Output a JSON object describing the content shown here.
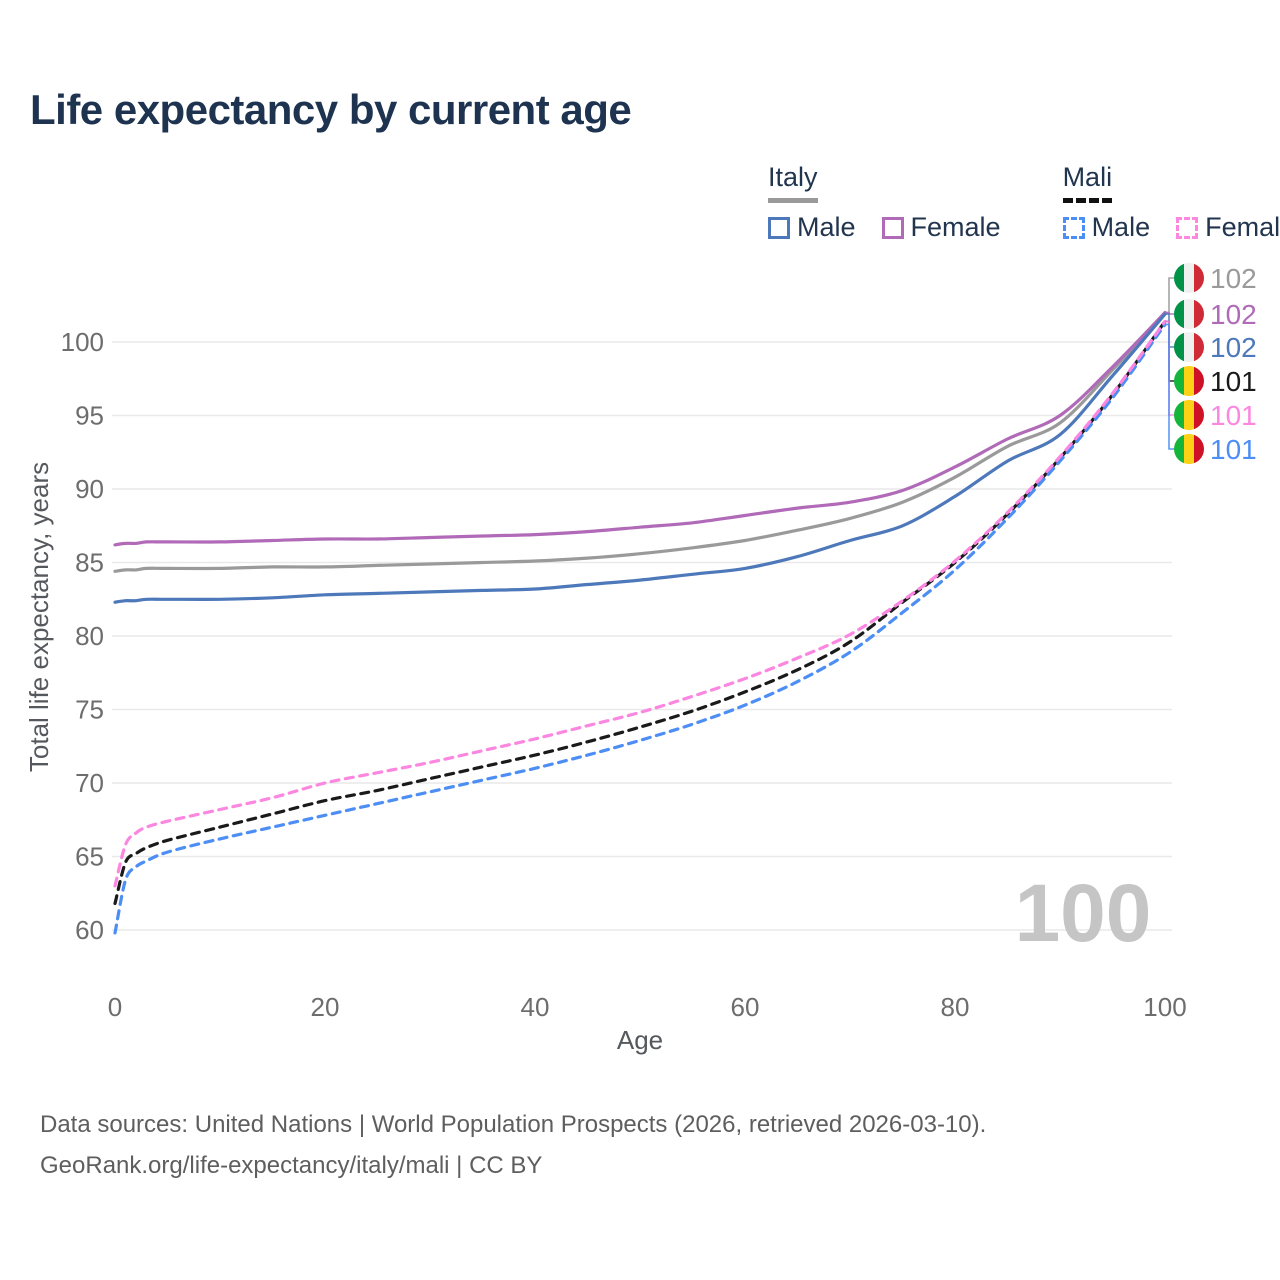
{
  "title": "Life expectancy by current age",
  "watermark_age": "100",
  "legend": {
    "groups": [
      {
        "label": "Italy",
        "line_style": "solid",
        "items": [
          {
            "label": "Male",
            "color": "#4d78ba"
          },
          {
            "label": "Female",
            "color": "#b06ab8"
          }
        ]
      },
      {
        "label": "Mali",
        "line_style": "dashed",
        "items": [
          {
            "label": "Male",
            "color": "#4d8ef5"
          },
          {
            "label": "Female",
            "color": "#fb87e0"
          }
        ]
      }
    ]
  },
  "footer": {
    "line1": "Data sources: United Nations | World Population Prospects (2026, retrieved 2026-03-10).",
    "line2": "GeoRank.org/life-expectancy/italy/mali | CC BY"
  },
  "colors": {
    "title_text": "#1e3350",
    "legend_text": "#22354f",
    "grid": "#e9e9e9",
    "tick_text": "#6d6d6d",
    "axis_title_text": "#55585d",
    "watermark": "#c5c5c5",
    "footer_text": "#5e5e5e",
    "italy_underline": "#9a9a9a",
    "mali_underline": "#111111"
  },
  "chart_data": {
    "type": "line",
    "title": "Life expectancy by current age",
    "xlabel": "Age",
    "ylabel": "Total life expectancy, years",
    "xlim": [
      0,
      100
    ],
    "ylim": [
      58,
      103
    ],
    "x_ticks": [
      0,
      20,
      40,
      60,
      80,
      100
    ],
    "y_ticks": [
      60,
      65,
      70,
      75,
      80,
      85,
      90,
      95,
      100
    ],
    "grid": "horizontal",
    "legend_position": "top-right",
    "x": [
      0,
      1,
      2,
      3,
      5,
      10,
      15,
      20,
      25,
      30,
      35,
      40,
      45,
      50,
      55,
      60,
      65,
      70,
      75,
      80,
      85,
      90,
      95,
      100
    ],
    "series": [
      {
        "name": "Italy",
        "country": "Italy",
        "sex": "Both",
        "line_style": "solid",
        "color": "#9a9a9b",
        "flag": "italy",
        "end_label": "102",
        "values": [
          84.4,
          84.5,
          84.5,
          84.6,
          84.6,
          84.6,
          84.7,
          84.7,
          84.8,
          84.9,
          85.0,
          85.1,
          85.3,
          85.6,
          86.0,
          86.5,
          87.2,
          88.0,
          89.1,
          90.8,
          92.9,
          94.5,
          98.1,
          102.0
        ]
      },
      {
        "name": "Italy Female",
        "country": "Italy",
        "sex": "Female",
        "line_style": "solid",
        "color": "#b06ab8",
        "flag": "italy",
        "end_label": "102",
        "values": [
          86.2,
          86.3,
          86.3,
          86.4,
          86.4,
          86.4,
          86.5,
          86.6,
          86.6,
          86.7,
          86.8,
          86.9,
          87.1,
          87.4,
          87.7,
          88.2,
          88.7,
          89.1,
          89.9,
          91.5,
          93.4,
          95.0,
          98.3,
          102.0
        ]
      },
      {
        "name": "Italy Male",
        "country": "Italy",
        "sex": "Male",
        "line_style": "solid",
        "color": "#4d78ba",
        "flag": "italy",
        "end_label": "102",
        "values": [
          82.3,
          82.4,
          82.4,
          82.5,
          82.5,
          82.5,
          82.6,
          82.8,
          82.9,
          83.0,
          83.1,
          83.2,
          83.5,
          83.8,
          84.2,
          84.6,
          85.4,
          86.5,
          87.5,
          89.5,
          91.9,
          93.7,
          97.7,
          101.9
        ]
      },
      {
        "name": "Mali",
        "country": "Mali",
        "sex": "Both",
        "line_style": "dashed",
        "color": "#1a1a1a",
        "flag": "mali",
        "end_label": "101",
        "values": [
          61.8,
          64.6,
          65.2,
          65.6,
          66.1,
          67.0,
          67.9,
          68.8,
          69.5,
          70.3,
          71.1,
          71.9,
          72.8,
          73.8,
          74.9,
          76.2,
          77.7,
          79.6,
          82.3,
          85.0,
          88.3,
          92.1,
          96.4,
          101.4
        ]
      },
      {
        "name": "Mali Male",
        "country": "Mali",
        "sex": "Male",
        "line_style": "dashed",
        "color": "#4d8ef5",
        "flag": "mali",
        "end_label": "101",
        "values": [
          59.8,
          63.4,
          64.3,
          64.7,
          65.3,
          66.2,
          67.0,
          67.8,
          68.6,
          69.4,
          70.2,
          71.0,
          71.9,
          72.9,
          74.0,
          75.3,
          76.9,
          78.9,
          81.6,
          84.5,
          88.0,
          91.9,
          96.2,
          101.2
        ]
      },
      {
        "name": "Mali Female",
        "country": "Mali",
        "sex": "Female",
        "line_style": "dashed",
        "color": "#fb87e0",
        "flag": "mali",
        "end_label": "101",
        "values": [
          63.0,
          65.8,
          66.6,
          67.0,
          67.4,
          68.2,
          69.0,
          70.0,
          70.7,
          71.4,
          72.2,
          73.0,
          73.9,
          74.8,
          75.9,
          77.1,
          78.5,
          80.1,
          82.4,
          85.1,
          88.4,
          92.2,
          96.5,
          101.4
        ]
      }
    ],
    "end_label_order": [
      "Italy",
      "Italy Female",
      "Italy Male",
      "Mali",
      "Mali Female",
      "Mali Male"
    ],
    "flags": {
      "italy": [
        "#009246",
        "#eff1ef",
        "#ce2b37"
      ],
      "mali": [
        "#14b53a",
        "#fcd116",
        "#ce1126"
      ]
    },
    "annotations": {
      "age_counter": "100"
    }
  }
}
